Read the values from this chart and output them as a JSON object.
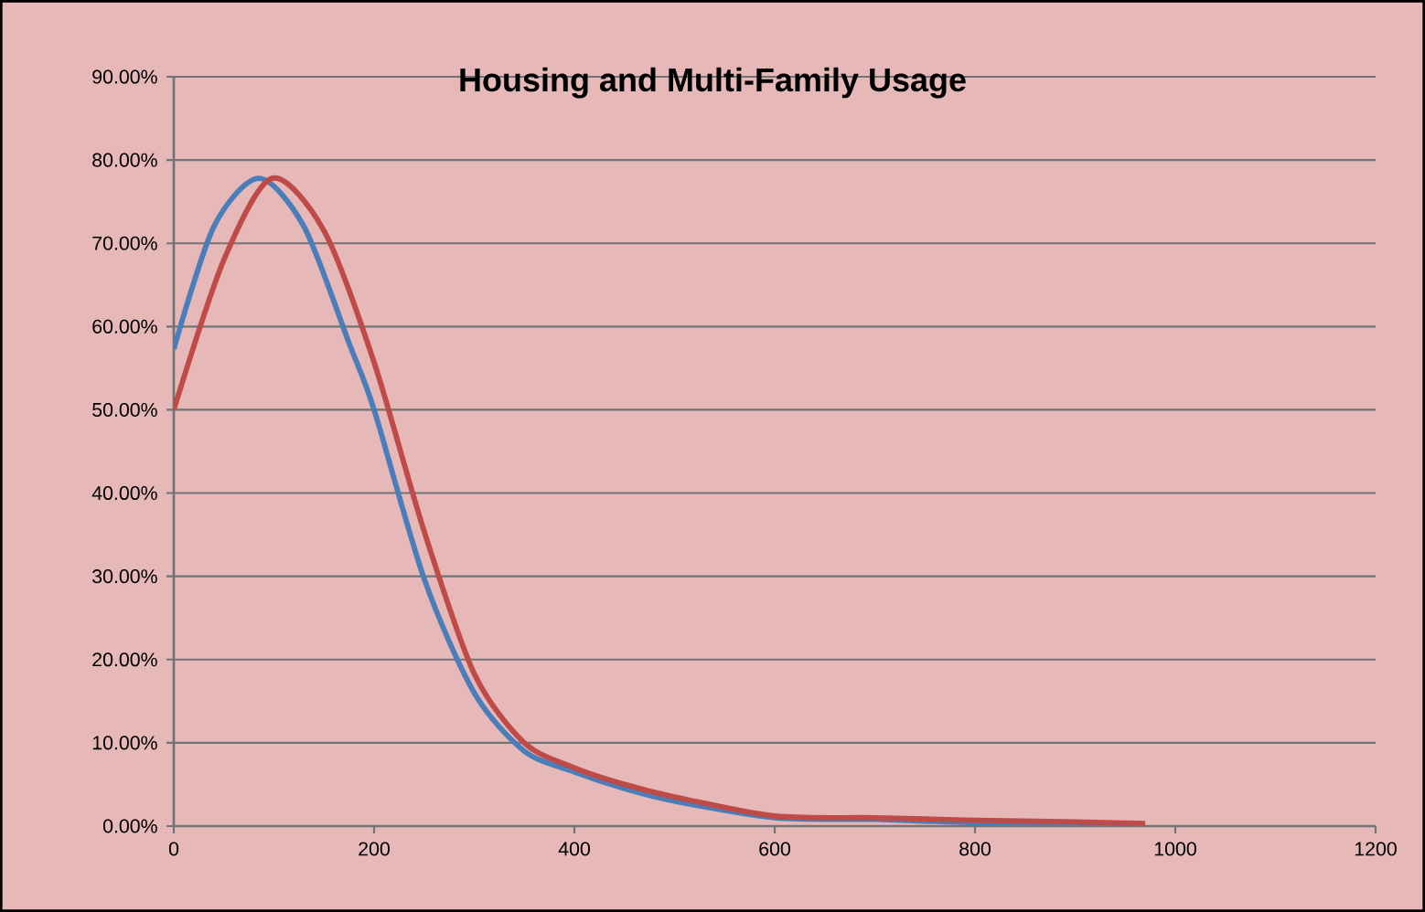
{
  "chart_data": {
    "type": "line",
    "title": "Housing and Multi-Family Usage",
    "series": [
      {
        "color": "#4a7ebb",
        "x": [
          0,
          40,
          85,
          130,
          175,
          200,
          250,
          300,
          350,
          400,
          450,
          500,
          600,
          700,
          800,
          900,
          960
        ],
        "values": [
          57.3,
          72,
          77.8,
          72,
          58,
          50,
          29.7,
          16,
          9,
          6.5,
          4.5,
          3,
          1,
          0.8,
          0.4,
          0.2,
          0.2
        ]
      },
      {
        "color": "#be4b48",
        "x": [
          0,
          50,
          98,
          150,
          200,
          250,
          300,
          350,
          400,
          450,
          500,
          600,
          700,
          800,
          900,
          970
        ],
        "values": [
          50,
          68,
          77.8,
          71.5,
          55.7,
          35.4,
          18.3,
          10,
          7,
          5,
          3.5,
          1.2,
          1,
          0.7,
          0.5,
          0.3
        ]
      }
    ],
    "xlim": [
      0,
      1200
    ],
    "xticks": [
      0,
      200,
      400,
      600,
      800,
      1000,
      1200
    ],
    "ylim": [
      0,
      90
    ],
    "yticks": [
      {
        "value": 0,
        "label": "0.00%"
      },
      {
        "value": 10,
        "label": "10.00%"
      },
      {
        "value": 20,
        "label": "20.00%"
      },
      {
        "value": 30,
        "label": "30.00%"
      },
      {
        "value": 40,
        "label": "40.00%"
      },
      {
        "value": 50,
        "label": "50.00%"
      },
      {
        "value": 60,
        "label": "60.00%"
      },
      {
        "value": 70,
        "label": "70.00%"
      },
      {
        "value": 80,
        "label": "80.00%"
      },
      {
        "value": 90,
        "label": "90.00%"
      }
    ],
    "grid": "y",
    "legend": false,
    "marker": "none",
    "line_style": "solid"
  }
}
